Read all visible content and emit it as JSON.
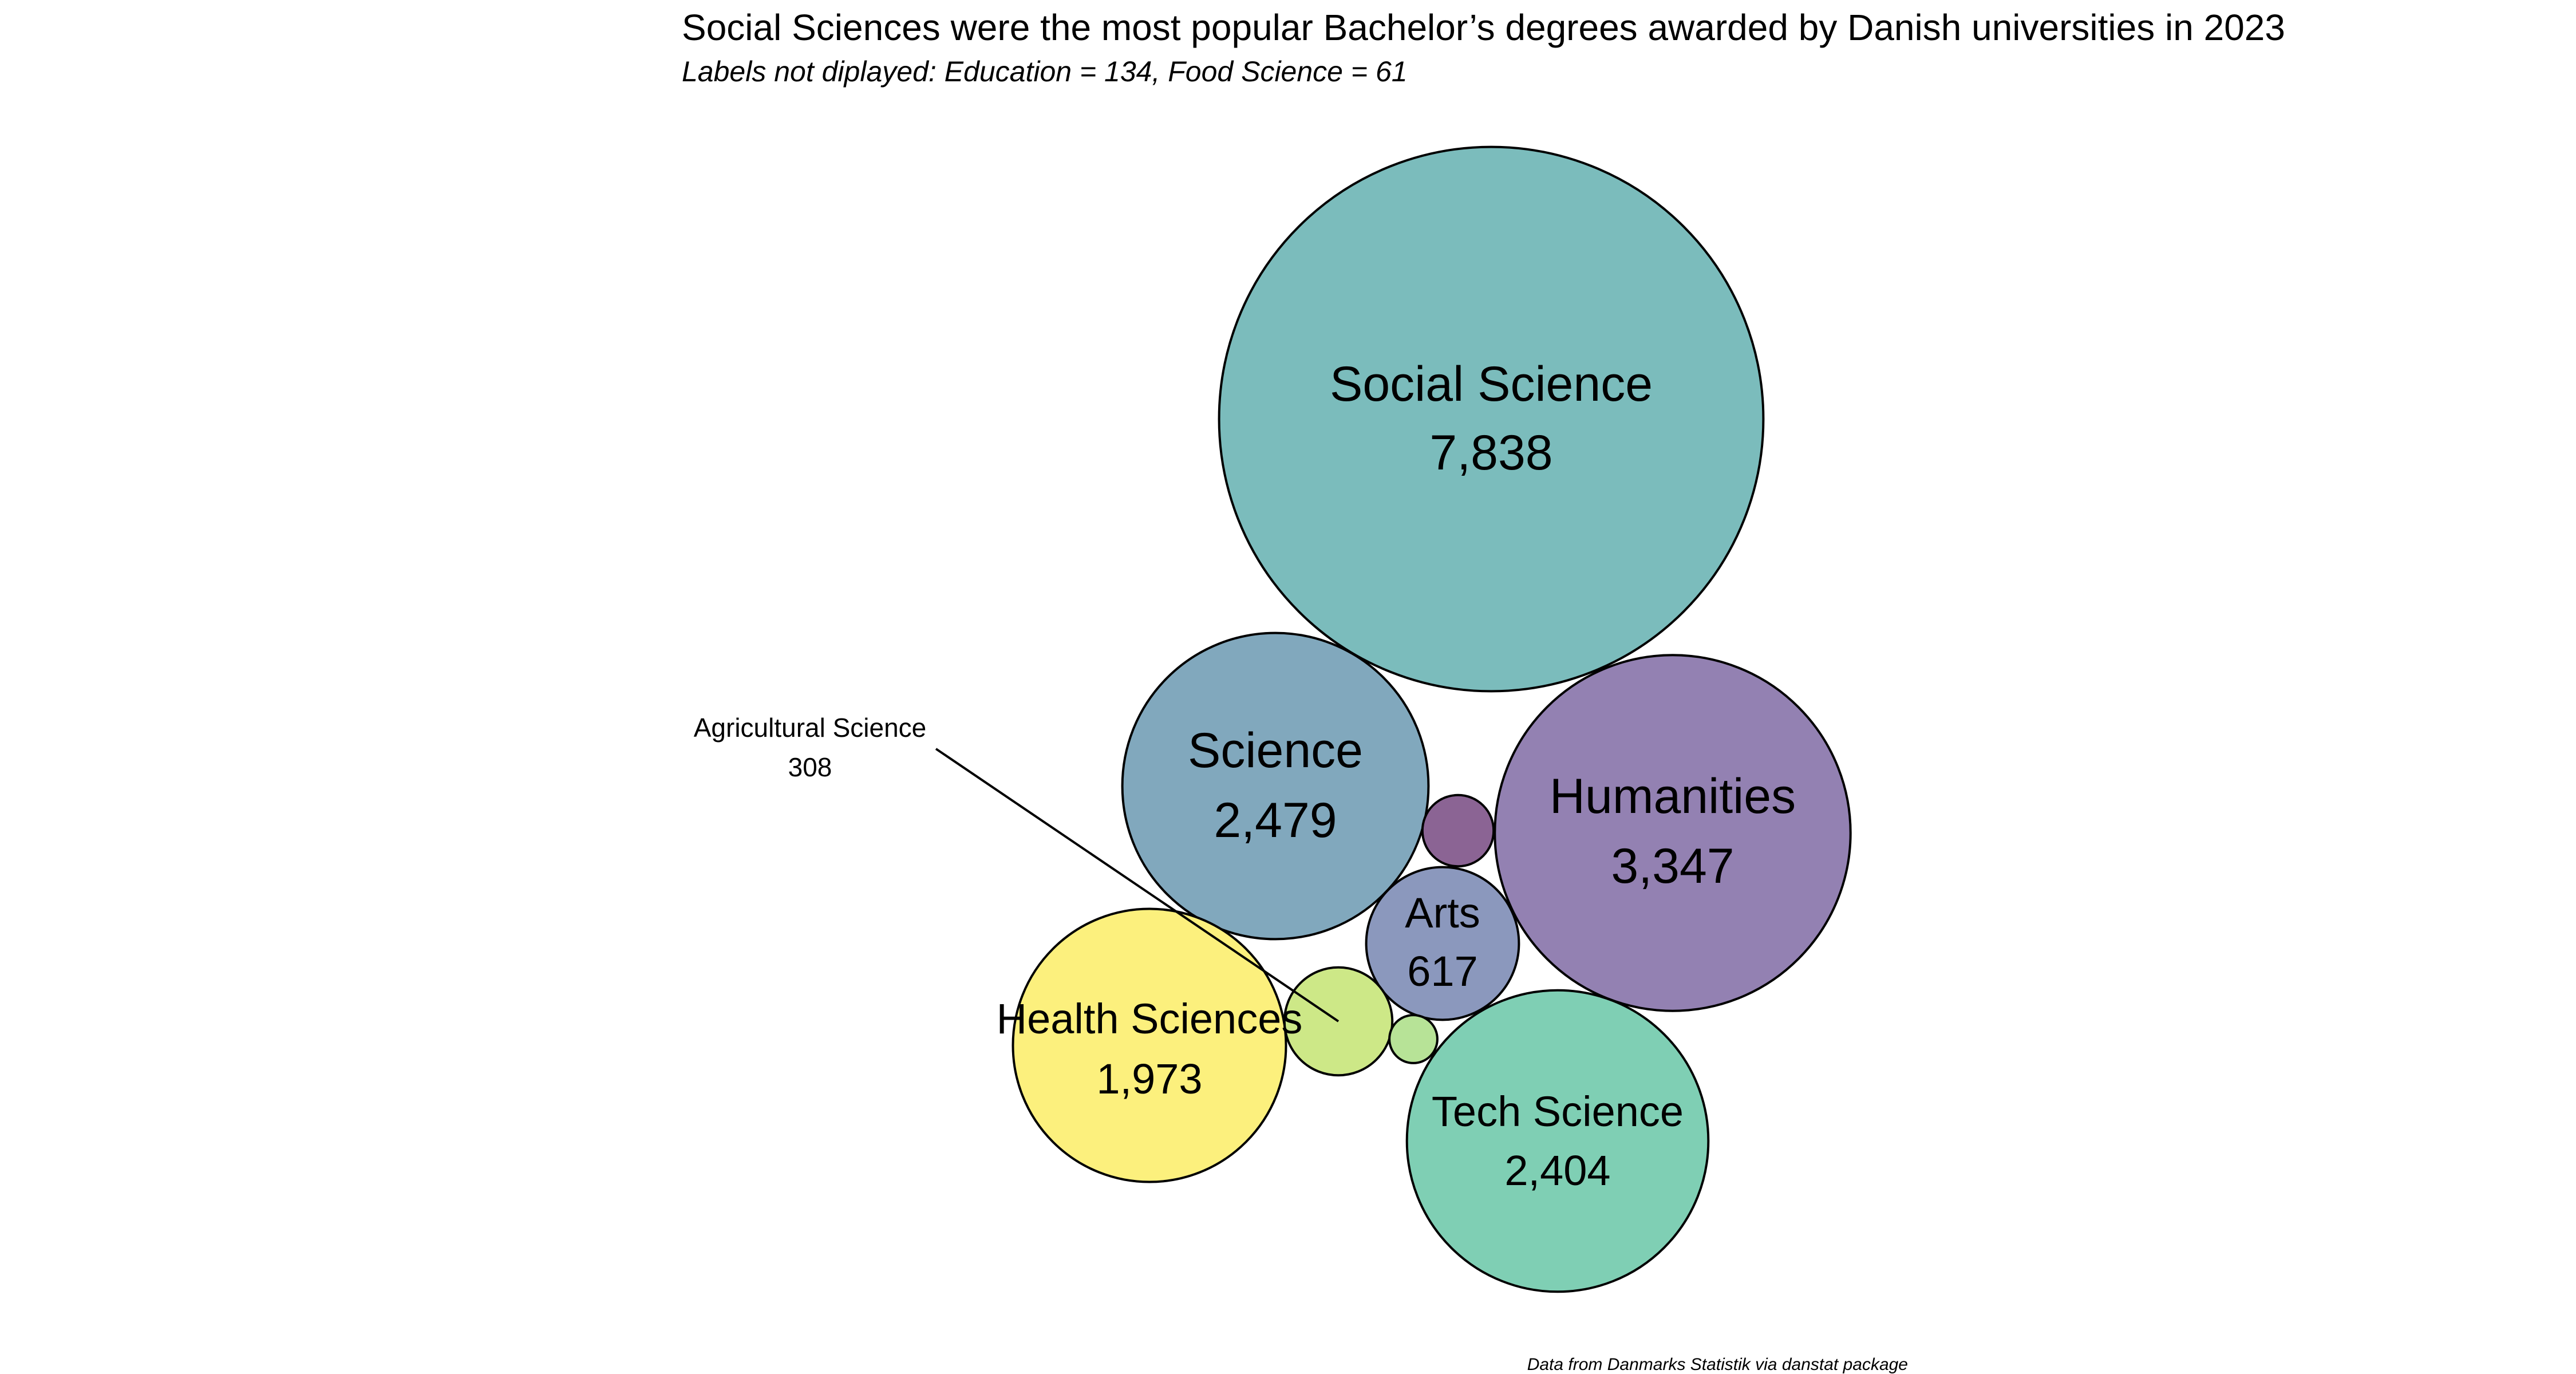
{
  "chart_data": {
    "type": "bubble",
    "title": "Social Sciences were the most popular Bachelor’s degrees awarded by Danish universities in 2023",
    "subtitle": "Labels not diplayed: Education = 134, Food Science = 61",
    "caption": "Data from Danmarks Statistik via danstat package",
    "series": [
      {
        "name": "Social Science",
        "value": 7838,
        "display": "7,838",
        "color": "#7bbcbc",
        "labeled": true
      },
      {
        "name": "Humanities",
        "value": 3347,
        "display": "3,347",
        "color": "#9381b2",
        "labeled": true
      },
      {
        "name": "Science",
        "value": 2479,
        "display": "2,479",
        "color": "#81a8bd",
        "labeled": true
      },
      {
        "name": "Tech Science",
        "value": 2404,
        "display": "2,404",
        "color": "#7fcfb4",
        "labeled": true
      },
      {
        "name": "Health Sciences",
        "value": 1973,
        "display": "1,973",
        "color": "#fcf07d",
        "labeled": true
      },
      {
        "name": "Arts",
        "value": 617,
        "display": "617",
        "color": "#8b98bd",
        "labeled": true
      },
      {
        "name": "Agricultural Science",
        "value": 308,
        "display": "308",
        "color": "#cde887",
        "labeled": true
      },
      {
        "name": "Education",
        "value": 134,
        "display": "134",
        "color": "#8b6494",
        "labeled": false
      },
      {
        "name": "Food Science",
        "value": 61,
        "display": "61",
        "color": "#b7e397",
        "labeled": false
      }
    ]
  }
}
